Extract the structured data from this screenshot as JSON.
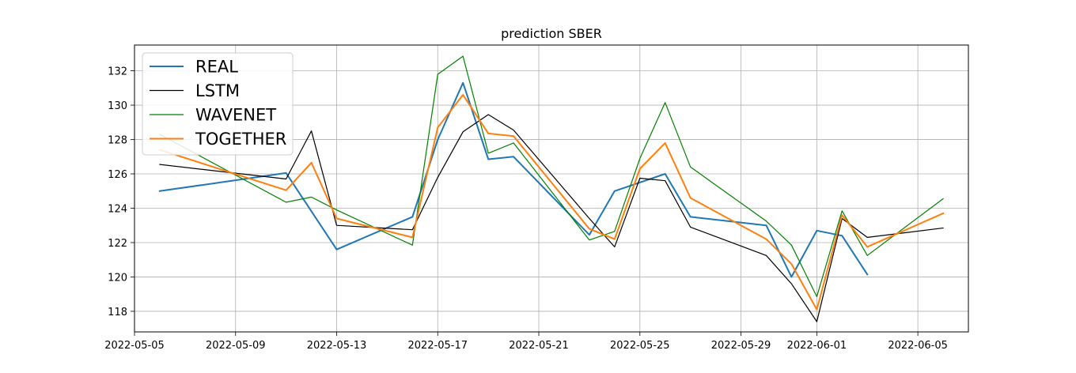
{
  "chart_data": {
    "type": "line",
    "title": "prediction SBER",
    "xlabel": "",
    "ylabel": "",
    "x_axis_type": "date",
    "xlim": [
      "2022-05-05",
      "2022-06-07"
    ],
    "ylim": [
      116.8,
      133.5
    ],
    "x_ticks": [
      "2022-05-05",
      "2022-05-09",
      "2022-05-13",
      "2022-05-17",
      "2022-05-21",
      "2022-05-25",
      "2022-05-29",
      "2022-06-01",
      "2022-06-05"
    ],
    "y_ticks": [
      118,
      120,
      122,
      124,
      126,
      128,
      130,
      132
    ],
    "y_tick_labels": [
      "118",
      "120",
      "122",
      "124",
      "126",
      "128",
      "130",
      "132"
    ],
    "grid": true,
    "legend_position": "top-left",
    "series": [
      {
        "name": "REAL",
        "color": "#1f77b4",
        "points": [
          [
            "2022-05-06",
            125.0
          ],
          [
            "2022-05-11",
            126.05
          ],
          [
            "2022-05-13",
            121.6
          ],
          [
            "2022-05-16",
            123.5
          ],
          [
            "2022-05-17",
            128.0
          ],
          [
            "2022-05-18",
            131.3
          ],
          [
            "2022-05-19",
            126.85
          ],
          [
            "2022-05-20",
            127.0
          ],
          [
            "2022-05-23",
            122.45
          ],
          [
            "2022-05-24",
            125.0
          ],
          [
            "2022-05-26",
            126.0
          ],
          [
            "2022-05-27",
            123.5
          ],
          [
            "2022-05-30",
            123.0
          ],
          [
            "2022-05-31",
            120.0
          ],
          [
            "2022-06-01",
            122.7
          ],
          [
            "2022-06-02",
            122.4
          ],
          [
            "2022-06-03",
            120.15
          ]
        ]
      },
      {
        "name": "LSTM",
        "color": "#000000",
        "points": [
          [
            "2022-05-06",
            126.55
          ],
          [
            "2022-05-11",
            125.7
          ],
          [
            "2022-05-12",
            128.5
          ],
          [
            "2022-05-13",
            123.0
          ],
          [
            "2022-05-16",
            122.75
          ],
          [
            "2022-05-17",
            125.8
          ],
          [
            "2022-05-18",
            128.45
          ],
          [
            "2022-05-19",
            129.45
          ],
          [
            "2022-05-20",
            128.55
          ],
          [
            "2022-05-23",
            123.4
          ],
          [
            "2022-05-24",
            121.75
          ],
          [
            "2022-05-25",
            125.75
          ],
          [
            "2022-05-26",
            125.6
          ],
          [
            "2022-05-27",
            122.9
          ],
          [
            "2022-05-30",
            121.25
          ],
          [
            "2022-05-31",
            119.6
          ],
          [
            "2022-06-01",
            117.4
          ],
          [
            "2022-06-02",
            123.4
          ],
          [
            "2022-06-03",
            122.3
          ],
          [
            "2022-06-06",
            122.85
          ]
        ]
      },
      {
        "name": "WAVENET",
        "color": "#008000",
        "points": [
          [
            "2022-05-06",
            128.3
          ],
          [
            "2022-05-11",
            124.35
          ],
          [
            "2022-05-12",
            124.65
          ],
          [
            "2022-05-13",
            123.9
          ],
          [
            "2022-05-16",
            121.85
          ],
          [
            "2022-05-17",
            131.8
          ],
          [
            "2022-05-18",
            132.85
          ],
          [
            "2022-05-19",
            127.2
          ],
          [
            "2022-05-20",
            127.8
          ],
          [
            "2022-05-23",
            122.15
          ],
          [
            "2022-05-24",
            122.65
          ],
          [
            "2022-05-25",
            126.9
          ],
          [
            "2022-05-26",
            130.15
          ],
          [
            "2022-05-27",
            126.4
          ],
          [
            "2022-05-30",
            123.25
          ],
          [
            "2022-05-31",
            121.85
          ],
          [
            "2022-06-01",
            118.85
          ],
          [
            "2022-06-02",
            123.85
          ],
          [
            "2022-06-03",
            121.25
          ],
          [
            "2022-06-06",
            124.55
          ]
        ]
      },
      {
        "name": "TOGETHER",
        "color": "#ff7f0e",
        "points": [
          [
            "2022-05-06",
            127.4
          ],
          [
            "2022-05-11",
            125.05
          ],
          [
            "2022-05-12",
            126.65
          ],
          [
            "2022-05-13",
            123.4
          ],
          [
            "2022-05-16",
            122.3
          ],
          [
            "2022-05-17",
            128.7
          ],
          [
            "2022-05-18",
            130.6
          ],
          [
            "2022-05-19",
            128.35
          ],
          [
            "2022-05-20",
            128.2
          ],
          [
            "2022-05-23",
            122.8
          ],
          [
            "2022-05-24",
            122.2
          ],
          [
            "2022-05-25",
            126.3
          ],
          [
            "2022-05-26",
            127.8
          ],
          [
            "2022-05-27",
            124.6
          ],
          [
            "2022-05-30",
            122.2
          ],
          [
            "2022-05-31",
            120.75
          ],
          [
            "2022-06-01",
            118.1
          ],
          [
            "2022-06-02",
            123.6
          ],
          [
            "2022-06-03",
            121.75
          ],
          [
            "2022-06-06",
            123.7
          ]
        ]
      }
    ]
  }
}
